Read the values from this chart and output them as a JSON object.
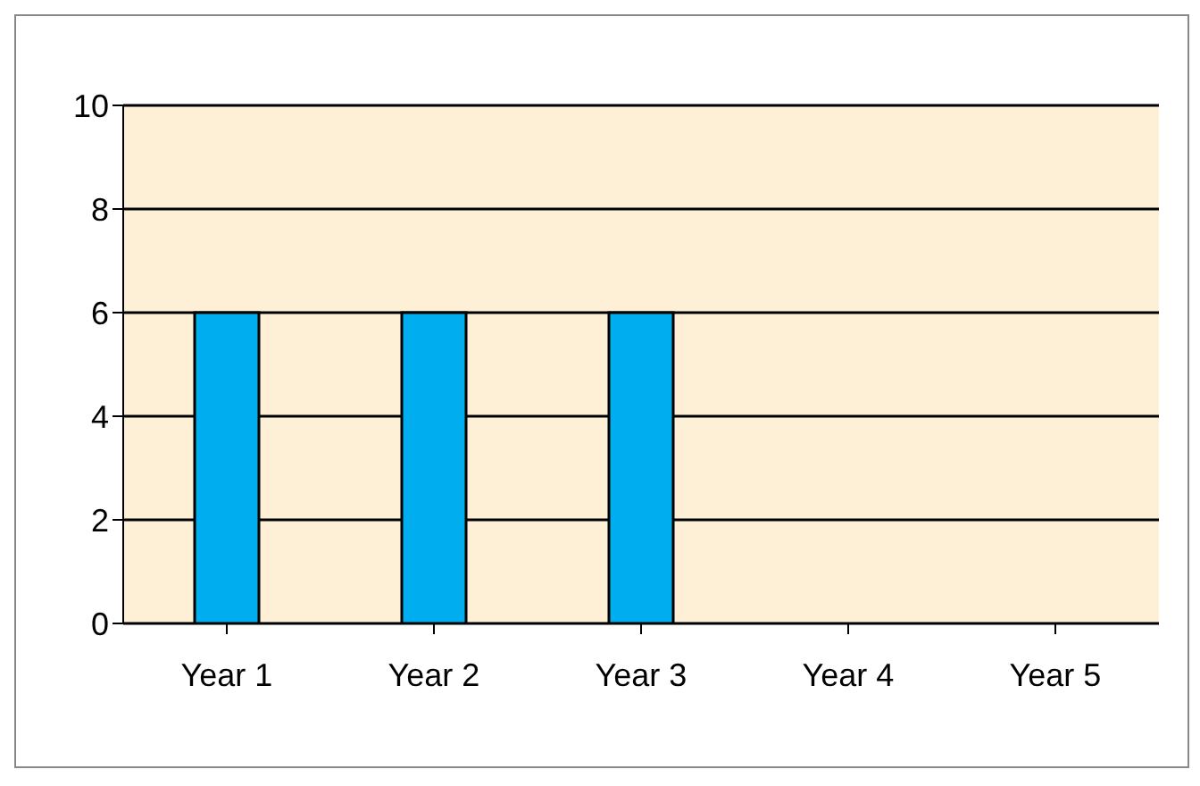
{
  "chart_data": {
    "type": "bar",
    "categories": [
      "Year 1",
      "Year 2",
      "Year 3",
      "Year 4",
      "Year 5"
    ],
    "values": [
      6,
      6,
      6,
      null,
      null
    ],
    "color": "#00aeef",
    "ylim": [
      0,
      10
    ],
    "yticks": [
      0,
      2,
      4,
      6,
      8,
      10
    ],
    "grid": "y"
  }
}
